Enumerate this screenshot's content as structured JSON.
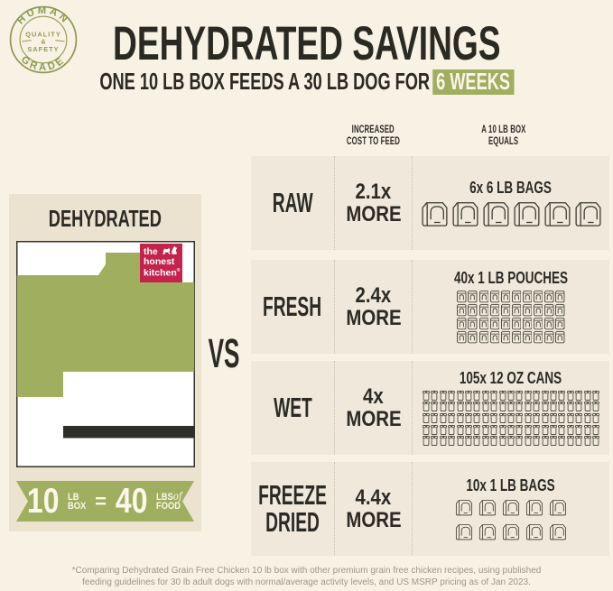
{
  "badge": {
    "arc_top": "HUMAN",
    "arc_bottom": "GRADE",
    "center_line1": "QUALITY",
    "center_line2": "&",
    "center_line3": "SAFETY"
  },
  "header": {
    "title": "DEHYDRATED SAVINGS",
    "subtitle_prefix": "ONE 10 LB BOX FEEDS A 30 LB DOG FOR",
    "subtitle_highlight": "6 WEEKS"
  },
  "columns": {
    "cost_line1": "INCREASED",
    "cost_line2": "COST TO FEED",
    "equals_line1": "A 10 LB BOX",
    "equals_line2": "EQUALS"
  },
  "left_panel": {
    "title": "DEHYDRATED",
    "logo": {
      "line1": "the",
      "line2": "honest",
      "line3": "kitchen",
      "reg": "®"
    },
    "ribbon": {
      "num1": "10",
      "unit1_line1": "LB",
      "unit1_line2": "BOX",
      "equals": "=",
      "num2": "40",
      "unit2_line1": "LBS",
      "unit2_of": "of",
      "unit2_line2": "FOOD"
    }
  },
  "vs": "VS",
  "rows": [
    {
      "label": "RAW",
      "multiplier": "2.1x",
      "more": "MORE",
      "caption": "6x 6 LB BAGS",
      "icon": "bag",
      "count": 6
    },
    {
      "label": "FRESH",
      "multiplier": "2.4x",
      "more": "MORE",
      "caption": "40x 1 LB POUCHES",
      "icon": "pouch",
      "count": 40
    },
    {
      "label": "WET",
      "multiplier": "4x",
      "more": "MORE",
      "caption": "105x 12 OZ CANS",
      "icon": "can",
      "count": 105
    },
    {
      "label": "FREEZE DRIED",
      "multiplier": "4.4x",
      "more": "MORE",
      "caption": "10x 1 LB BAGS",
      "icon": "bag",
      "count": 10
    }
  ],
  "footnote_line1": "*Comparing Dehydrated Grain Free Chicken 10 lb box with other premium grain free chicken recipes, using published",
  "footnote_line2": "feeding guidelines for 30 lb adult dogs with normal/average activity levels, and US MSRP pricing as of Jan 2023.",
  "colors": {
    "background": "#f8f2e5",
    "row_background": "#f0e9db",
    "panel_background": "#ebe2d0",
    "green": "#a0ae5f",
    "badge_olive": "#8e9b52",
    "logo_red": "#c4234b",
    "text_dark": "#2b2a25",
    "footnote_gray": "#9d978b"
  }
}
